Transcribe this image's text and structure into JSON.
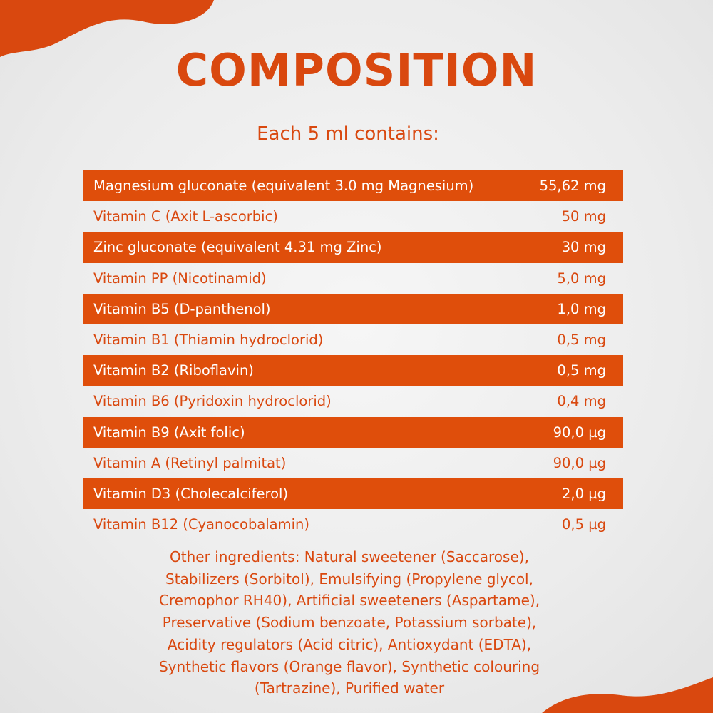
{
  "title": "COMPOSITION",
  "subtitle": "Each 5 ml contains:",
  "table": {
    "rows": [
      [
        "Magnesium gluconate (equivalent 3.0 mg Magnesium)",
        "55,62 mg"
      ],
      [
        "Vitamin C (Axit L-ascorbic)",
        "50 mg"
      ],
      [
        "Zinc gluconate (equivalent 4.31 mg Zinc)",
        "30 mg"
      ],
      [
        "Vitamin PP (Nicotinamid)",
        "5,0 mg"
      ],
      [
        "Vitamin B5 (D-panthenol)",
        "1,0 mg"
      ],
      [
        "Vitamin B1 (Thiamin hydroclorid)",
        "0,5 mg"
      ],
      [
        "Vitamin B2 (Riboflavin)",
        "0,5 mg"
      ],
      [
        "Vitamin B6 (Pyridoxin hydroclorid)",
        "0,4 mg"
      ],
      [
        "Vitamin B9 (Axit folic)",
        "90,0 µg"
      ],
      [
        "Vitamin A (Retinyl palmitat)",
        "90,0 µg"
      ],
      [
        "Vitamin D3 (Cholecalciferol)",
        "2,0 µg"
      ],
      [
        "Vitamin B12 (Cyanocobalamin)",
        "0,5 µg"
      ]
    ]
  },
  "other_ingredients": {
    "lines": [
      "Other ingredients: Natural sweetener (Saccarose),",
      "Stabilizers (Sorbitol), Emulsifying (Propylene glycol,",
      "Cremophor RH40), Artificial sweeteners (Aspartame),",
      "Preservative (Sodium benzoate, Potassium sorbate),",
      "Acidity regulators (Acid citric), Antioxydant (EDTA),",
      "Synthetic flavors (Orange flavor), Synthetic colouring",
      "(Tartrazine), Purified water"
    ]
  }
}
